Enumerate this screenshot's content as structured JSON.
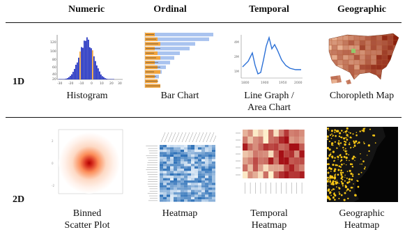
{
  "columns": [
    "Numeric",
    "Ordinal",
    "Temporal",
    "Geographic"
  ],
  "rows": [
    "1D",
    "2D"
  ],
  "captions": {
    "histogram": "Histogram",
    "bar_chart": "Bar Chart",
    "line_graph_1": "Line Graph /",
    "line_graph_2": "Area Chart",
    "choropleth": "Choropleth Map",
    "binned_1": "Binned",
    "binned_2": "Scatter Plot",
    "heatmap": "Heatmap",
    "temporal_1": "Temporal",
    "temporal_2": "Heatmap",
    "geo_1": "Geographic",
    "geo_2": "Heatmap"
  },
  "colors": {
    "histogram_bar": "#1f2fbf",
    "bar_fill": "#a9c3ef",
    "bar_highlight": "#f1a33b",
    "line": "#2a6fd6",
    "choropleth_dark": "#8a1e0b",
    "choropleth_light": "#f6c7a6",
    "heat_dark": "#a50f15",
    "heat_light": "#fff3cf",
    "blue_dark": "#2b6fb7",
    "blue_light": "#e3eef9",
    "geo_yellow": "#f6c515"
  }
}
